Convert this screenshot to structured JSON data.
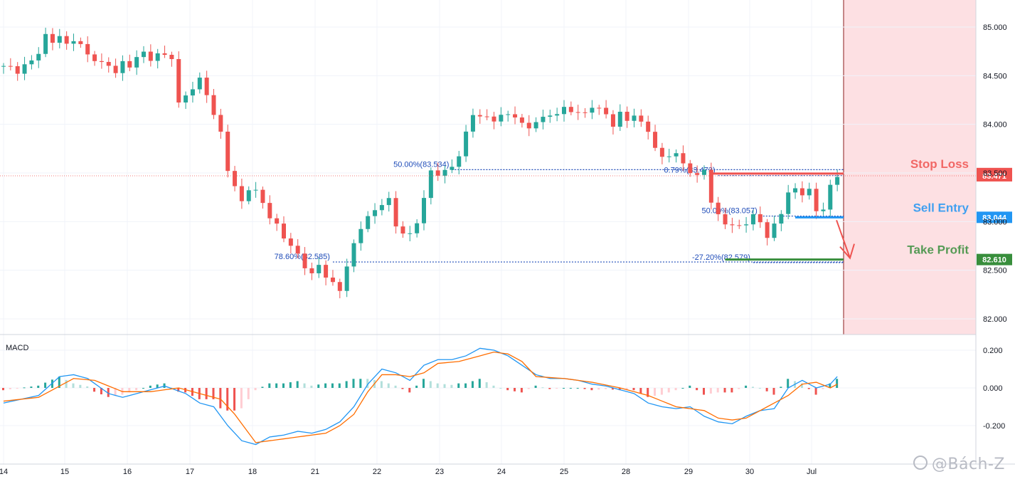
{
  "colors": {
    "up": "#26a69a",
    "down": "#ef5350",
    "macd": "#2196f3",
    "signal": "#ff6d00",
    "hist_up_strong": "#26a69a",
    "hist_up_weak": "#b2dfdb",
    "hist_down_strong": "#ef5350",
    "hist_down_weak": "#ffcdd2",
    "stop": "#ef5350",
    "sell": "#2196f3",
    "tp": "#388e3c",
    "fib": "#1e4bb8",
    "shade": "#fde0e3",
    "grid": "#f0f3fa",
    "axis_text": "#131722"
  },
  "chart_data": [
    {
      "type": "candlestick",
      "ylim": [
        81.8,
        85.25
      ],
      "y_ticks": [
        "82.000",
        "82.500",
        "83.000",
        "83.500",
        "84.000",
        "84.500",
        "85.000"
      ],
      "x_ticks": [
        "14",
        "15",
        "16",
        "17",
        "18",
        "21",
        "22",
        "23",
        "24",
        "25",
        "28",
        "29",
        "30",
        "Jul"
      ],
      "last_price": 83.471,
      "close_path": [
        [
          0,
          84.6
        ],
        [
          2,
          84.55
        ],
        [
          4,
          84.65
        ],
        [
          5,
          84.75
        ],
        [
          6,
          84.9
        ],
        [
          7,
          84.85
        ],
        [
          8,
          84.92
        ],
        [
          9,
          84.8
        ],
        [
          10,
          84.88
        ],
        [
          11,
          84.82
        ],
        [
          12,
          84.7
        ],
        [
          13,
          84.68
        ],
        [
          14,
          84.62
        ],
        [
          15,
          84.6
        ],
        [
          16,
          84.55
        ],
        [
          17,
          84.62
        ],
        [
          18,
          84.6
        ],
        [
          19,
          84.7
        ],
        [
          20,
          84.72
        ],
        [
          21,
          84.68
        ],
        [
          22,
          84.72
        ],
        [
          23,
          84.7
        ],
        [
          24,
          84.7
        ],
        [
          25,
          84.2
        ],
        [
          26,
          84.3
        ],
        [
          27,
          84.38
        ],
        [
          28,
          84.45
        ],
        [
          29,
          84.32
        ],
        [
          30,
          84.1
        ],
        [
          31,
          83.9
        ],
        [
          32,
          83.55
        ],
        [
          33,
          83.35
        ],
        [
          34,
          83.2
        ],
        [
          35,
          83.35
        ],
        [
          36,
          83.3
        ],
        [
          37,
          83.2
        ],
        [
          38,
          83.05
        ],
        [
          39,
          82.95
        ],
        [
          40,
          82.85
        ],
        [
          41,
          82.75
        ],
        [
          42,
          82.65
        ],
        [
          43,
          82.55
        ],
        [
          44,
          82.45
        ],
        [
          45,
          82.55
        ],
        [
          46,
          82.45
        ],
        [
          47,
          82.35
        ],
        [
          48,
          82.3
        ],
        [
          49,
          82.55
        ],
        [
          50,
          82.75
        ],
        [
          51,
          82.95
        ],
        [
          52,
          83.05
        ],
        [
          53,
          83.1
        ],
        [
          54,
          83.2
        ],
        [
          55,
          83.22
        ],
        [
          56,
          82.95
        ],
        [
          57,
          82.9
        ],
        [
          58,
          82.85
        ],
        [
          59,
          83.0
        ],
        [
          60,
          83.25
        ],
        [
          61,
          83.5
        ],
        [
          62,
          83.5
        ],
        [
          63,
          83.52
        ],
        [
          64,
          83.55
        ],
        [
          65,
          83.7
        ],
        [
          66,
          83.9
        ],
        [
          67,
          84.1
        ],
        [
          68,
          84.1
        ],
        [
          69,
          84.05
        ],
        [
          70,
          84.05
        ],
        [
          71,
          84.1
        ],
        [
          72,
          84.08
        ],
        [
          73,
          84.1
        ],
        [
          74,
          84.0
        ],
        [
          75,
          83.95
        ],
        [
          76,
          84.05
        ],
        [
          77,
          84.05
        ],
        [
          78,
          84.1
        ],
        [
          79,
          84.12
        ],
        [
          80,
          84.15
        ],
        [
          81,
          84.15
        ],
        [
          82,
          84.12
        ],
        [
          83,
          84.1
        ],
        [
          84,
          84.2
        ],
        [
          85,
          84.15
        ],
        [
          86,
          84.1
        ],
        [
          87,
          84.0
        ],
        [
          88,
          84.1
        ],
        [
          89,
          84.05
        ],
        [
          90,
          84.1
        ],
        [
          91,
          84.0
        ],
        [
          92,
          83.95
        ],
        [
          93,
          83.75
        ],
        [
          94,
          83.65
        ],
        [
          95,
          83.7
        ],
        [
          96,
          83.68
        ],
        [
          97,
          83.6
        ],
        [
          98,
          83.52
        ],
        [
          99,
          83.45
        ],
        [
          100,
          83.55
        ],
        [
          101,
          83.2
        ],
        [
          102,
          83.05
        ],
        [
          103,
          83.0
        ],
        [
          104,
          82.95
        ],
        [
          105,
          82.95
        ],
        [
          106,
          83.0
        ],
        [
          107,
          83.05
        ],
        [
          108,
          83.0
        ],
        [
          109,
          82.85
        ],
        [
          110,
          82.95
        ],
        [
          111,
          83.1
        ],
        [
          112,
          83.3
        ],
        [
          113,
          83.32
        ],
        [
          114,
          83.3
        ],
        [
          115,
          83.32
        ],
        [
          116,
          83.1
        ],
        [
          117,
          83.15
        ],
        [
          118,
          83.35
        ],
        [
          119,
          83.47
        ]
      ],
      "annotations": {
        "stop_loss": {
          "label": "Stop Loss",
          "price": 83.494,
          "price_label": "83.494"
        },
        "current": {
          "price": 83.471,
          "price_label": "83.471"
        },
        "sell_entry": {
          "label": "Sell Entry",
          "price": 83.044,
          "price_label": "83.044"
        },
        "take_profit": {
          "label": "Take Profit",
          "price": 82.61,
          "price_label": "82.610"
        },
        "fib_labels": [
          {
            "text": "50.00%(83.534)",
            "price": 83.534,
            "from": 64,
            "to": 119
          },
          {
            "text": "0.79%(83.473)",
            "price": 83.473,
            "from": 102,
            "to": 119
          },
          {
            "text": "78.60%(82.585)",
            "price": 82.585,
            "from": 47,
            "to": 119
          },
          {
            "text": "-27.20%(82.579)",
            "price": 82.579,
            "from": 107,
            "to": 119
          },
          {
            "text": "50.00%(83.057)",
            "price": 83.057,
            "from": 108,
            "to": 119
          }
        ]
      }
    },
    {
      "type": "line",
      "title": "MACD",
      "ylim": [
        -0.32,
        0.26
      ],
      "y_ticks": [
        "0.200",
        "0.000",
        "-0.200"
      ],
      "macd_path": [
        [
          0,
          -0.08
        ],
        [
          5,
          -0.04
        ],
        [
          8,
          0.06
        ],
        [
          10,
          0.07
        ],
        [
          12,
          0.05
        ],
        [
          15,
          -0.03
        ],
        [
          17,
          -0.05
        ],
        [
          20,
          -0.02
        ],
        [
          23,
          0.01
        ],
        [
          26,
          -0.03
        ],
        [
          28,
          -0.08
        ],
        [
          30,
          -0.1
        ],
        [
          32,
          -0.2
        ],
        [
          34,
          -0.28
        ],
        [
          36,
          -0.3
        ],
        [
          38,
          -0.26
        ],
        [
          40,
          -0.25
        ],
        [
          42,
          -0.23
        ],
        [
          44,
          -0.24
        ],
        [
          46,
          -0.22
        ],
        [
          48,
          -0.18
        ],
        [
          50,
          -0.1
        ],
        [
          52,
          0.02
        ],
        [
          54,
          0.1
        ],
        [
          56,
          0.08
        ],
        [
          58,
          0.04
        ],
        [
          60,
          0.12
        ],
        [
          62,
          0.15
        ],
        [
          64,
          0.15
        ],
        [
          66,
          0.17
        ],
        [
          68,
          0.21
        ],
        [
          70,
          0.2
        ],
        [
          72,
          0.17
        ],
        [
          74,
          0.12
        ],
        [
          76,
          0.07
        ],
        [
          78,
          0.05
        ],
        [
          80,
          0.05
        ],
        [
          82,
          0.04
        ],
        [
          84,
          0.02
        ],
        [
          86,
          0.01
        ],
        [
          88,
          -0.01
        ],
        [
          90,
          -0.03
        ],
        [
          92,
          -0.08
        ],
        [
          94,
          -0.1
        ],
        [
          96,
          -0.11
        ],
        [
          98,
          -0.1
        ],
        [
          100,
          -0.15
        ],
        [
          102,
          -0.18
        ],
        [
          104,
          -0.19
        ],
        [
          106,
          -0.15
        ],
        [
          108,
          -0.12
        ],
        [
          110,
          -0.11
        ],
        [
          112,
          0.0
        ],
        [
          114,
          0.04
        ],
        [
          116,
          0.0
        ],
        [
          118,
          0.02
        ],
        [
          119,
          0.06
        ]
      ],
      "signal_path": [
        [
          0,
          -0.07
        ],
        [
          5,
          -0.05
        ],
        [
          10,
          0.05
        ],
        [
          13,
          0.04
        ],
        [
          17,
          -0.02
        ],
        [
          21,
          -0.02
        ],
        [
          25,
          0.0
        ],
        [
          28,
          -0.03
        ],
        [
          31,
          -0.06
        ],
        [
          33,
          -0.14
        ],
        [
          36,
          -0.29
        ],
        [
          38,
          -0.28
        ],
        [
          42,
          -0.26
        ],
        [
          46,
          -0.24
        ],
        [
          48,
          -0.2
        ],
        [
          50,
          -0.14
        ],
        [
          52,
          -0.02
        ],
        [
          54,
          0.07
        ],
        [
          56,
          0.07
        ],
        [
          58,
          0.06
        ],
        [
          60,
          0.08
        ],
        [
          62,
          0.13
        ],
        [
          65,
          0.14
        ],
        [
          68,
          0.17
        ],
        [
          70,
          0.19
        ],
        [
          72,
          0.18
        ],
        [
          74,
          0.14
        ],
        [
          76,
          0.06
        ],
        [
          80,
          0.05
        ],
        [
          84,
          0.03
        ],
        [
          88,
          0.0
        ],
        [
          92,
          -0.04
        ],
        [
          96,
          -0.1
        ],
        [
          100,
          -0.12
        ],
        [
          102,
          -0.16
        ],
        [
          104,
          -0.17
        ],
        [
          106,
          -0.16
        ],
        [
          108,
          -0.12
        ],
        [
          112,
          -0.04
        ],
        [
          114,
          0.02
        ],
        [
          116,
          0.03
        ],
        [
          118,
          0.0
        ],
        [
          119,
          0.02
        ]
      ]
    }
  ],
  "macd_label": "MACD",
  "watermark": "@Bách-Z",
  "icons": {
    "watermark": "tv-logo-icon"
  }
}
